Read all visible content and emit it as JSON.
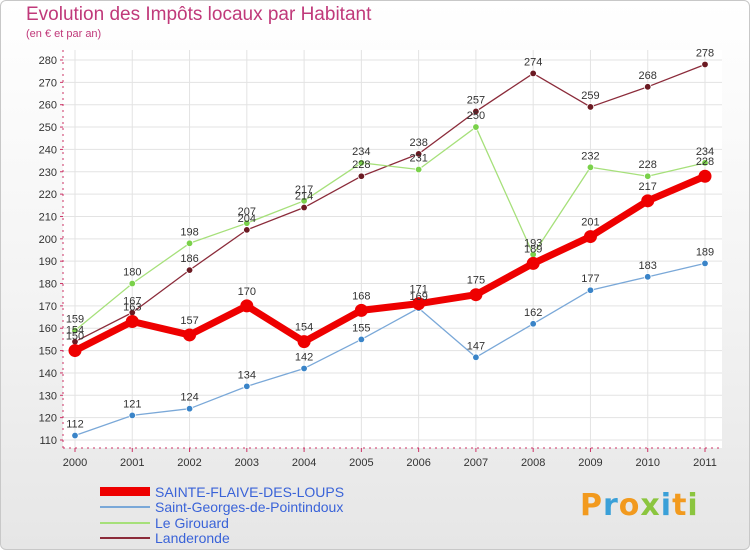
{
  "title": "Evolution des Impôts locaux par Habitant",
  "subtitle": "(en € et par an)",
  "logo": {
    "letters": [
      "P",
      "r",
      "o",
      "x",
      "i",
      "t",
      "i"
    ],
    "colors": [
      "#f29a1e",
      "#3aa0d8",
      "#f29a1e",
      "#8bc53f",
      "#3aa0d8",
      "#f29a1e",
      "#8bc53f"
    ]
  },
  "chart_data": {
    "type": "line",
    "x": [
      "2000",
      "2001",
      "2002",
      "2003",
      "2004",
      "2005",
      "2006",
      "2007",
      "2008",
      "2009",
      "2010",
      "2011"
    ],
    "ylim": [
      110,
      280
    ],
    "yticks": [
      110,
      120,
      130,
      140,
      150,
      160,
      170,
      180,
      190,
      200,
      210,
      220,
      230,
      240,
      250,
      260,
      270,
      280
    ],
    "grid": true,
    "legend_position": "bottom-left",
    "series": [
      {
        "name": "Landeronde",
        "color": "#8b2b3a",
        "marker": "#6b1a22",
        "values": [
          154,
          167,
          186,
          204,
          214,
          228,
          238,
          257,
          274,
          259,
          268,
          278
        ]
      },
      {
        "name": "Le Girouard",
        "color": "#a6e07a",
        "marker": "#7ad14a",
        "values": [
          159,
          180,
          198,
          207,
          217,
          234,
          231,
          250,
          193,
          232,
          228,
          234
        ]
      },
      {
        "name": "Saint-Georges-de-Pointindoux",
        "color": "#7aa8d8",
        "marker": "#3a84c8",
        "values": [
          112,
          121,
          124,
          134,
          142,
          155,
          169,
          147,
          162,
          177,
          183,
          189
        ]
      },
      {
        "name": "SAINTE-FLAIVE-DES-LOUPS",
        "color": "#ee0000",
        "marker": "#ee0000",
        "values": [
          150,
          163,
          157,
          170,
          154,
          168,
          171,
          175,
          189,
          201,
          217,
          228
        ]
      }
    ],
    "legend": [
      "SAINTE-FLAIVE-DES-LOUPS",
      "Saint-Georges-de-Pointindoux",
      "Le Girouard",
      "Landeronde"
    ]
  }
}
